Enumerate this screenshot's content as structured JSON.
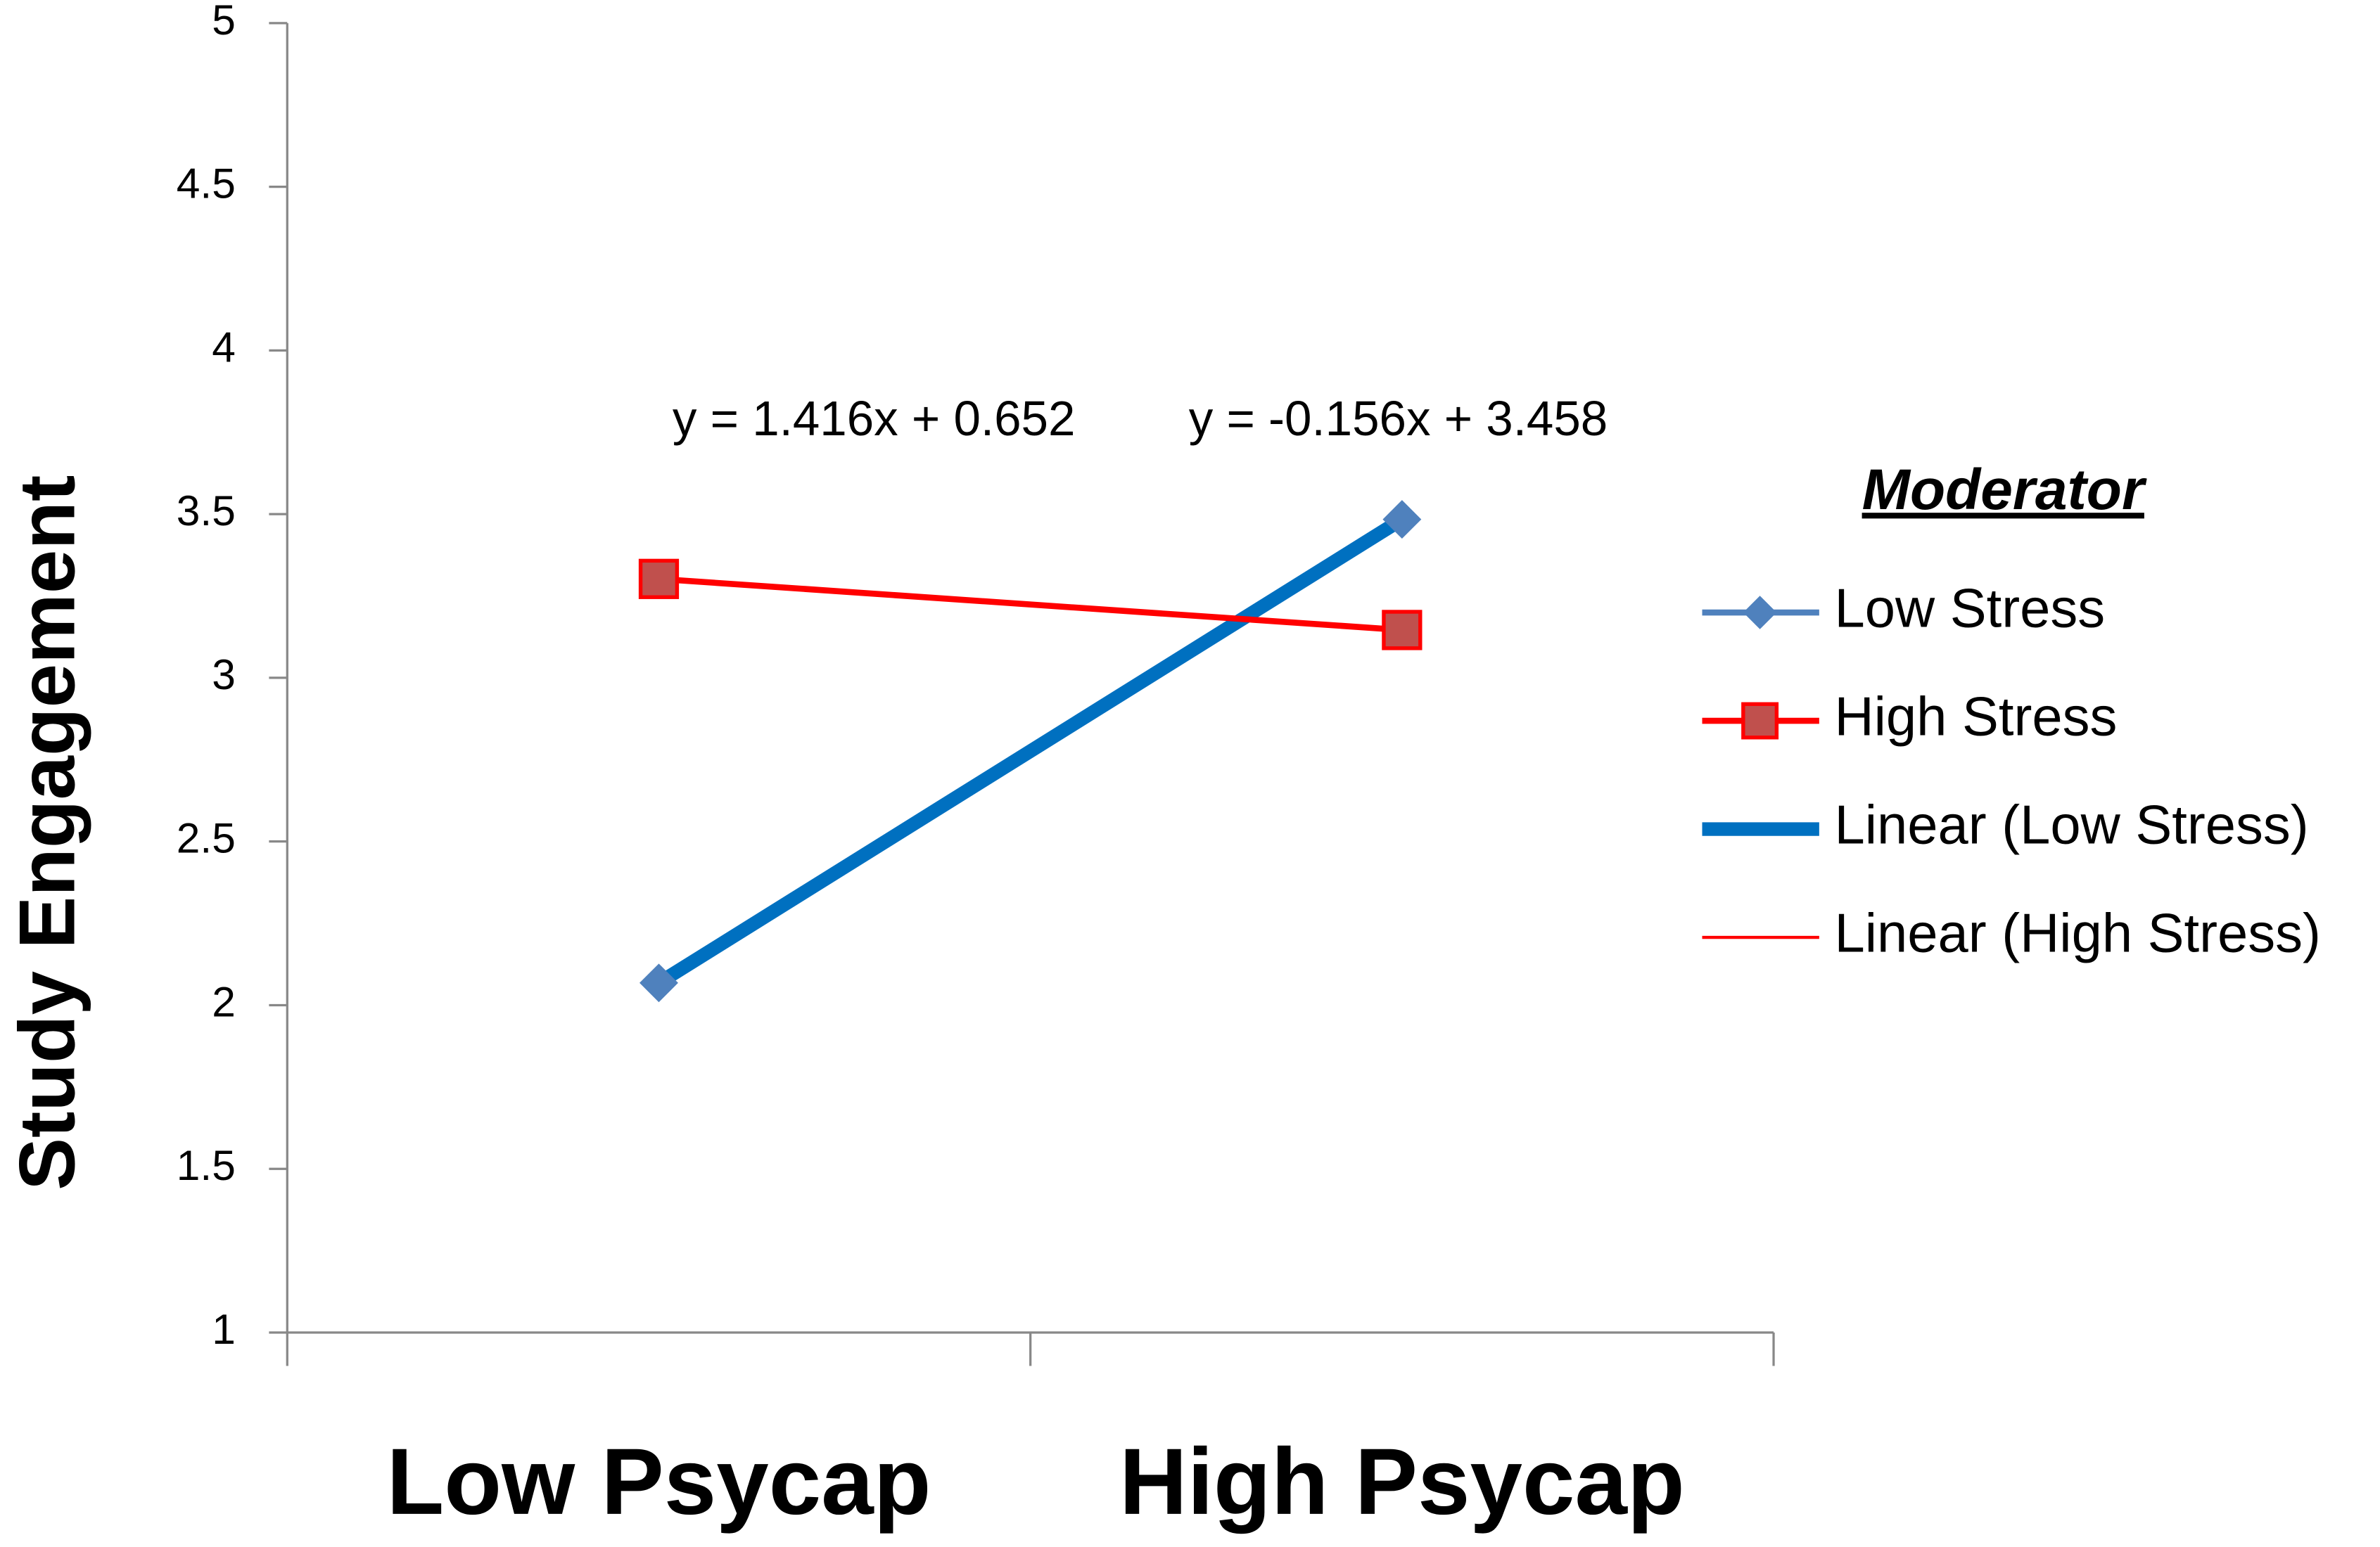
{
  "chart_data": {
    "type": "line",
    "categories": [
      "Low Psycap",
      "High Psycap"
    ],
    "ylabel": "Study Engagement",
    "ylim": [
      1,
      5
    ],
    "yticks": [
      1,
      1.5,
      2,
      2.5,
      3,
      3.5,
      4,
      4.5,
      5
    ],
    "legend_title": "Moderator",
    "legend": "right",
    "annotations": [
      "y = 1.416x + 0.652",
      "y = -0.156x + 3.458"
    ],
    "series": [
      {
        "name": "Low Stress",
        "color": "#4f81bd",
        "marker": "diamond",
        "values": [
          2.068,
          3.484
        ]
      },
      {
        "name": "High Stress",
        "color": "#ff0000",
        "marker": "square",
        "marker_fill": "#c0504d",
        "values": [
          3.302,
          3.146
        ]
      },
      {
        "name": "Linear (Low Stress)",
        "color": "#0070c0",
        "marker": "none",
        "values": [
          2.068,
          3.484
        ]
      },
      {
        "name": "Linear (High Stress)",
        "color": "#ff0000",
        "marker": "none",
        "values": [
          3.302,
          3.146
        ]
      }
    ]
  }
}
